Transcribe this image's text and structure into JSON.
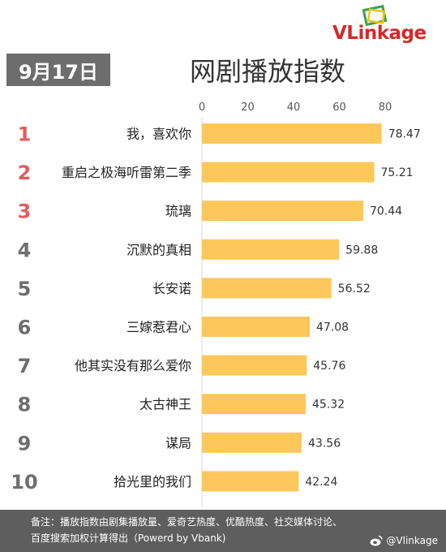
{
  "brand": {
    "logo_prefix": "VL",
    "logo_rest": "inkage",
    "weibo_handle": "@Vlinkage"
  },
  "header": {
    "date": "9月17日",
    "title": "网剧播放指数"
  },
  "footer": {
    "note_line1": "备注：播放指数由剧集播放量、爱奇艺热度、优酷热度、社交媒体讨论、",
    "note_line2": "百度搜索加权计算得出（Powerd by Vbank)"
  },
  "colors": {
    "bar": "#fdc859",
    "rank_top": "#e25c5c",
    "rank_other": "#6e6e6e",
    "footer_bg": "#5e5e5e",
    "date_bg": "#6d6d6d",
    "logo": "#d42a2a"
  },
  "chart_data": {
    "type": "bar",
    "orientation": "horizontal",
    "title": "网剧播放指数",
    "xlim": [
      0,
      80
    ],
    "ticks": [
      0,
      20,
      40,
      60,
      80
    ],
    "grid": false,
    "ranks": [
      "1",
      "2",
      "3",
      "4",
      "5",
      "6",
      "7",
      "8",
      "9",
      "10"
    ],
    "categories": [
      "我，喜欢你",
      "重启之极海听雷第二季",
      "琉璃",
      "沉默的真相",
      "长安诺",
      "三嫁惹君心",
      "他其实没有那么爱你",
      "太古神王",
      "谋局",
      "拾光里的我们"
    ],
    "values": [
      78.47,
      75.21,
      70.44,
      59.88,
      56.52,
      47.08,
      45.76,
      45.32,
      43.56,
      42.24
    ],
    "value_labels": [
      "78.47",
      "75.21",
      "70.44",
      "59.88",
      "56.52",
      "47.08",
      "45.76",
      "45.32",
      "43.56",
      "42.24"
    ]
  }
}
